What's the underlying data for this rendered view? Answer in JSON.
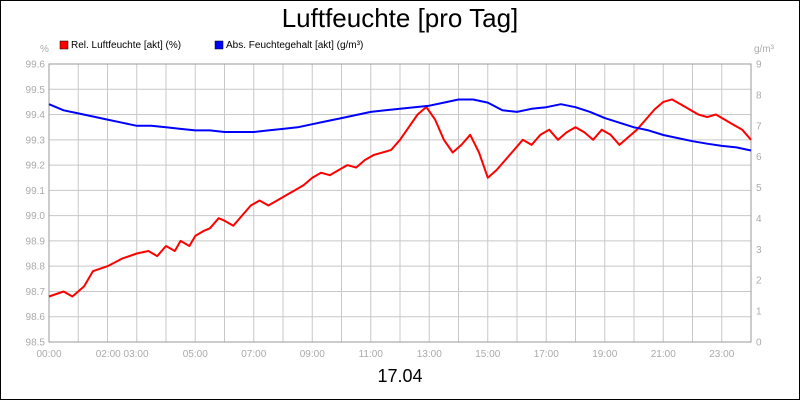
{
  "chart_data": {
    "type": "line",
    "title": "Luftfeuchte [pro Tag]",
    "xlabel": "17.04",
    "y_left_unit": "%",
    "y_right_unit": "g/m³",
    "y_left_lim": [
      98.5,
      99.6
    ],
    "y_right_lim": [
      0,
      9
    ],
    "y_left_ticks": [
      "99.6",
      "99.5",
      "99.4",
      "99.3",
      "99.2",
      "99.1",
      "99.0",
      "98.9",
      "98.8",
      "98.7",
      "98.6",
      "98.5"
    ],
    "y_right_ticks": [
      "9",
      "8",
      "7",
      "6",
      "5",
      "4",
      "3",
      "2",
      "1",
      "0"
    ],
    "x_lim": [
      0,
      24
    ],
    "x_ticks": [
      {
        "t": 0,
        "label": "00:00"
      },
      {
        "t": 2.5,
        "label": "02:00 03:00"
      },
      {
        "t": 5,
        "label": "05:00"
      },
      {
        "t": 7,
        "label": "07:00"
      },
      {
        "t": 9,
        "label": "09:00"
      },
      {
        "t": 11,
        "label": "11:00"
      },
      {
        "t": 13,
        "label": "13:00"
      },
      {
        "t": 15,
        "label": "15:00"
      },
      {
        "t": 17,
        "label": "17:00"
      },
      {
        "t": 19,
        "label": "19:00"
      },
      {
        "t": 21,
        "label": "21:00"
      },
      {
        "t": 23,
        "label": "23:00"
      }
    ],
    "grid": true,
    "legend_position": "top-left",
    "colors": {
      "rel": "#ff0000",
      "abs": "#0000ff",
      "grid": "#c8c8c8",
      "axis": "#999999"
    },
    "series": [
      {
        "name": "Rel. Luftfeuchte [akt] (%)",
        "axis": "left",
        "x": [
          0,
          0.5,
          0.8,
          1.2,
          1.5,
          2,
          2.5,
          3,
          3.4,
          3.7,
          4,
          4.3,
          4.5,
          4.8,
          5,
          5.3,
          5.5,
          5.8,
          6,
          6.3,
          6.6,
          6.9,
          7.2,
          7.5,
          7.8,
          8.1,
          8.4,
          8.7,
          9,
          9.3,
          9.6,
          9.9,
          10.2,
          10.5,
          10.8,
          11.1,
          11.4,
          11.7,
          12,
          12.3,
          12.6,
          12.9,
          13.2,
          13.5,
          13.8,
          14.1,
          14.4,
          14.7,
          15,
          15.3,
          15.6,
          15.9,
          16.2,
          16.5,
          16.8,
          17.1,
          17.4,
          17.7,
          18,
          18.3,
          18.6,
          18.9,
          19.2,
          19.5,
          19.8,
          20.1,
          20.4,
          20.7,
          21,
          21.3,
          21.6,
          21.9,
          22.2,
          22.5,
          22.8,
          23.1,
          23.4,
          23.7,
          24
        ],
        "values": [
          98.68,
          98.7,
          98.68,
          98.72,
          98.78,
          98.8,
          98.83,
          98.85,
          98.86,
          98.84,
          98.88,
          98.86,
          98.9,
          98.88,
          98.92,
          98.94,
          98.95,
          98.99,
          98.98,
          98.96,
          99.0,
          99.04,
          99.06,
          99.04,
          99.06,
          99.08,
          99.1,
          99.12,
          99.15,
          99.17,
          99.16,
          99.18,
          99.2,
          99.19,
          99.22,
          99.24,
          99.25,
          99.26,
          99.3,
          99.35,
          99.4,
          99.43,
          99.38,
          99.3,
          99.25,
          99.28,
          99.32,
          99.25,
          99.15,
          99.18,
          99.22,
          99.26,
          99.3,
          99.28,
          99.32,
          99.34,
          99.3,
          99.33,
          99.35,
          99.33,
          99.3,
          99.34,
          99.32,
          99.28,
          99.31,
          99.34,
          99.38,
          99.42,
          99.45,
          99.46,
          99.44,
          99.42,
          99.4,
          99.39,
          99.4,
          99.38,
          99.36,
          99.34,
          99.3
        ]
      },
      {
        "name": "Abs. Feuchtegehalt [akt] (g/m³)",
        "axis": "right",
        "x": [
          0,
          0.5,
          1,
          1.5,
          2,
          2.5,
          3,
          3.5,
          4,
          4.5,
          5,
          5.5,
          6,
          6.5,
          7,
          7.5,
          8,
          8.5,
          9,
          9.5,
          10,
          10.5,
          11,
          11.5,
          12,
          12.5,
          13,
          13.5,
          14,
          14.5,
          15,
          15.5,
          16,
          16.5,
          17,
          17.5,
          18,
          18.5,
          19,
          19.5,
          20,
          20.5,
          21,
          21.5,
          22,
          22.5,
          23,
          23.5,
          24
        ],
        "values": [
          7.7,
          7.5,
          7.4,
          7.3,
          7.2,
          7.1,
          7.0,
          7.0,
          6.95,
          6.9,
          6.85,
          6.85,
          6.8,
          6.8,
          6.8,
          6.85,
          6.9,
          6.95,
          7.05,
          7.15,
          7.25,
          7.35,
          7.45,
          7.5,
          7.55,
          7.6,
          7.65,
          7.75,
          7.85,
          7.85,
          7.75,
          7.5,
          7.45,
          7.55,
          7.6,
          7.7,
          7.6,
          7.45,
          7.25,
          7.1,
          6.95,
          6.85,
          6.7,
          6.6,
          6.5,
          6.42,
          6.35,
          6.3,
          6.2
        ]
      }
    ]
  }
}
